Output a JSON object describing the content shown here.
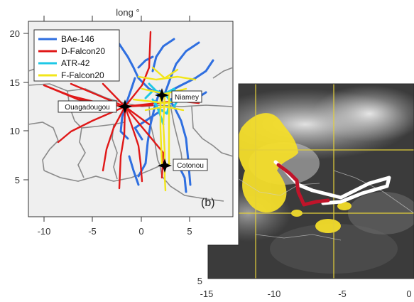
{
  "left_panel": {
    "top_axis_label": "long °",
    "x_ticks": [
      "-10",
      "-5",
      "0",
      "5"
    ],
    "y_ticks": [
      "5",
      "10",
      "15",
      "20"
    ],
    "panel_label": "(b)",
    "legend": [
      {
        "label": "BAe-146",
        "color": "#2f6fe0"
      },
      {
        "label": "D-Falcon20",
        "color": "#e01818"
      },
      {
        "label": "ATR-42",
        "color": "#1ec8e6"
      },
      {
        "label": "F-Falcon20",
        "color": "#f2e61a"
      }
    ],
    "cities": [
      {
        "name": "Niamey"
      },
      {
        "name": "Ouagadougou"
      },
      {
        "name": "Cotonou"
      }
    ]
  },
  "right_panel": {
    "x_ticks": [
      "-15",
      "-10",
      "-5",
      "0"
    ],
    "y_ticks": [
      "5"
    ],
    "flight_colors": {
      "red": "#c0142a",
      "white": "#ffffff"
    }
  }
}
